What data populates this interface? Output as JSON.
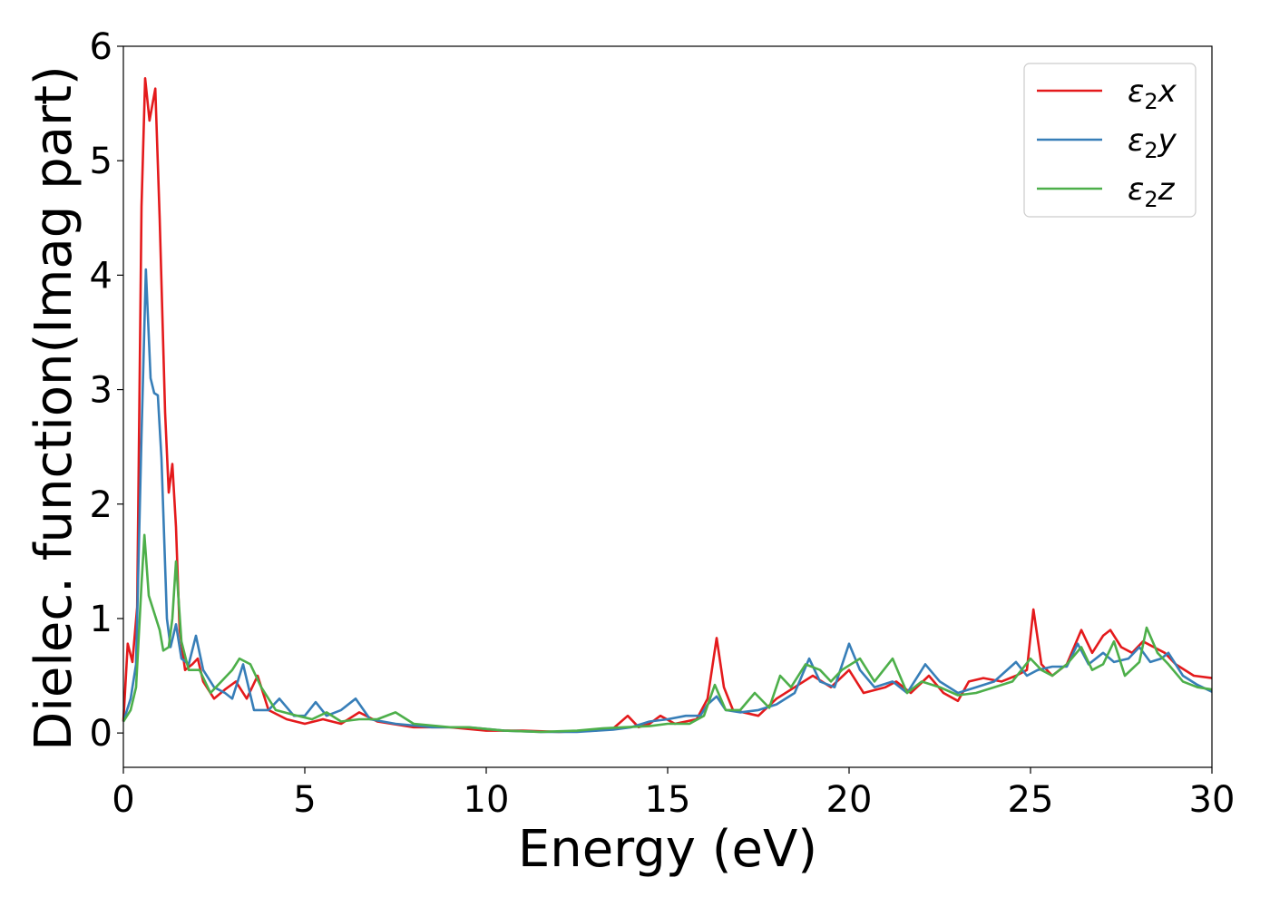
{
  "chart_data": {
    "type": "line",
    "title": "",
    "xlabel": "Energy (eV)",
    "ylabel": "Dielec. function(Imag part)",
    "xlim": [
      0,
      30
    ],
    "ylim": [
      -0.3,
      6.0
    ],
    "xticks": [
      0,
      5,
      10,
      15,
      20,
      25,
      30
    ],
    "yticks": [
      0,
      1,
      2,
      3,
      4,
      5,
      6
    ],
    "grid": false,
    "legend_position": "top-right",
    "series": [
      {
        "name": "ε₂x",
        "legend_main": "ε",
        "legend_sub": "2",
        "legend_tail": "x",
        "color": "#e41a1c",
        "points": [
          [
            0,
            0.1
          ],
          [
            0.12,
            0.78
          ],
          [
            0.25,
            0.62
          ],
          [
            0.38,
            1.1
          ],
          [
            0.5,
            4.6
          ],
          [
            0.6,
            5.72
          ],
          [
            0.72,
            5.35
          ],
          [
            0.88,
            5.63
          ],
          [
            1.0,
            4.5
          ],
          [
            1.15,
            2.8
          ],
          [
            1.25,
            2.1
          ],
          [
            1.35,
            2.35
          ],
          [
            1.45,
            1.8
          ],
          [
            1.55,
            0.9
          ],
          [
            1.7,
            0.55
          ],
          [
            1.9,
            0.6
          ],
          [
            2.05,
            0.65
          ],
          [
            2.2,
            0.45
          ],
          [
            2.5,
            0.3
          ],
          [
            2.8,
            0.38
          ],
          [
            3.1,
            0.45
          ],
          [
            3.4,
            0.3
          ],
          [
            3.7,
            0.5
          ],
          [
            4.0,
            0.2
          ],
          [
            4.5,
            0.12
          ],
          [
            5.0,
            0.08
          ],
          [
            5.5,
            0.12
          ],
          [
            6.0,
            0.08
          ],
          [
            6.5,
            0.18
          ],
          [
            7.0,
            0.1
          ],
          [
            8.0,
            0.05
          ],
          [
            9.0,
            0.05
          ],
          [
            10.0,
            0.02
          ],
          [
            11.0,
            0.02
          ],
          [
            12.0,
            0.01
          ],
          [
            13.0,
            0.02
          ],
          [
            13.5,
            0.04
          ],
          [
            13.9,
            0.15
          ],
          [
            14.2,
            0.05
          ],
          [
            14.5,
            0.08
          ],
          [
            14.8,
            0.15
          ],
          [
            15.2,
            0.08
          ],
          [
            15.8,
            0.12
          ],
          [
            16.1,
            0.3
          ],
          [
            16.35,
            0.83
          ],
          [
            16.55,
            0.4
          ],
          [
            16.8,
            0.2
          ],
          [
            17.5,
            0.15
          ],
          [
            18.0,
            0.3
          ],
          [
            18.5,
            0.4
          ],
          [
            19.0,
            0.5
          ],
          [
            19.5,
            0.4
          ],
          [
            20.0,
            0.55
          ],
          [
            20.4,
            0.35
          ],
          [
            21.0,
            0.4
          ],
          [
            21.3,
            0.45
          ],
          [
            21.7,
            0.35
          ],
          [
            22.2,
            0.5
          ],
          [
            22.6,
            0.35
          ],
          [
            23.0,
            0.28
          ],
          [
            23.3,
            0.45
          ],
          [
            23.7,
            0.48
          ],
          [
            24.2,
            0.45
          ],
          [
            24.6,
            0.5
          ],
          [
            24.9,
            0.55
          ],
          [
            25.08,
            1.08
          ],
          [
            25.3,
            0.6
          ],
          [
            25.6,
            0.5
          ],
          [
            26.0,
            0.6
          ],
          [
            26.4,
            0.9
          ],
          [
            26.7,
            0.7
          ],
          [
            27.0,
            0.85
          ],
          [
            27.2,
            0.9
          ],
          [
            27.5,
            0.75
          ],
          [
            27.8,
            0.7
          ],
          [
            28.1,
            0.8
          ],
          [
            28.4,
            0.75
          ],
          [
            28.7,
            0.7
          ],
          [
            29.0,
            0.6
          ],
          [
            29.5,
            0.5
          ],
          [
            30.0,
            0.48
          ]
        ]
      },
      {
        "name": "ε₂y",
        "legend_main": "ε",
        "legend_sub": "2",
        "legend_tail": "y",
        "color": "#377eb8",
        "points": [
          [
            0,
            0.1
          ],
          [
            0.2,
            0.3
          ],
          [
            0.35,
            0.6
          ],
          [
            0.5,
            2.6
          ],
          [
            0.62,
            4.05
          ],
          [
            0.75,
            3.1
          ],
          [
            0.85,
            2.97
          ],
          [
            0.95,
            2.95
          ],
          [
            1.05,
            2.4
          ],
          [
            1.2,
            1.0
          ],
          [
            1.3,
            0.75
          ],
          [
            1.45,
            0.95
          ],
          [
            1.6,
            0.65
          ],
          [
            1.8,
            0.6
          ],
          [
            2.0,
            0.85
          ],
          [
            2.2,
            0.55
          ],
          [
            2.5,
            0.4
          ],
          [
            2.8,
            0.35
          ],
          [
            3.0,
            0.3
          ],
          [
            3.3,
            0.6
          ],
          [
            3.6,
            0.2
          ],
          [
            4.0,
            0.2
          ],
          [
            4.3,
            0.3
          ],
          [
            4.7,
            0.15
          ],
          [
            5.0,
            0.15
          ],
          [
            5.3,
            0.27
          ],
          [
            5.6,
            0.15
          ],
          [
            6.0,
            0.2
          ],
          [
            6.4,
            0.3
          ],
          [
            6.8,
            0.12
          ],
          [
            7.5,
            0.08
          ],
          [
            8.5,
            0.05
          ],
          [
            9.5,
            0.05
          ],
          [
            10.5,
            0.02
          ],
          [
            11.5,
            0.01
          ],
          [
            12.5,
            0.01
          ],
          [
            13.5,
            0.03
          ],
          [
            14.0,
            0.05
          ],
          [
            14.5,
            0.1
          ],
          [
            15.0,
            0.12
          ],
          [
            15.5,
            0.15
          ],
          [
            15.9,
            0.15
          ],
          [
            16.1,
            0.25
          ],
          [
            16.35,
            0.32
          ],
          [
            16.6,
            0.2
          ],
          [
            17.0,
            0.18
          ],
          [
            17.5,
            0.2
          ],
          [
            18.0,
            0.25
          ],
          [
            18.5,
            0.35
          ],
          [
            18.9,
            0.65
          ],
          [
            19.2,
            0.45
          ],
          [
            19.6,
            0.4
          ],
          [
            20.0,
            0.78
          ],
          [
            20.3,
            0.55
          ],
          [
            20.7,
            0.4
          ],
          [
            21.2,
            0.45
          ],
          [
            21.6,
            0.35
          ],
          [
            22.1,
            0.6
          ],
          [
            22.5,
            0.45
          ],
          [
            23.0,
            0.35
          ],
          [
            23.5,
            0.4
          ],
          [
            24.0,
            0.45
          ],
          [
            24.6,
            0.62
          ],
          [
            24.9,
            0.5
          ],
          [
            25.2,
            0.55
          ],
          [
            25.6,
            0.58
          ],
          [
            26.0,
            0.58
          ],
          [
            26.3,
            0.78
          ],
          [
            26.6,
            0.6
          ],
          [
            27.0,
            0.7
          ],
          [
            27.3,
            0.62
          ],
          [
            27.7,
            0.65
          ],
          [
            28.0,
            0.75
          ],
          [
            28.3,
            0.62
          ],
          [
            28.6,
            0.65
          ],
          [
            28.8,
            0.7
          ],
          [
            29.2,
            0.5
          ],
          [
            29.6,
            0.42
          ],
          [
            30.0,
            0.36
          ]
        ]
      },
      {
        "name": "ε₂z",
        "legend_main": "ε",
        "legend_sub": "2",
        "legend_tail": "z",
        "color": "#4daf4a",
        "points": [
          [
            0,
            0.1
          ],
          [
            0.2,
            0.2
          ],
          [
            0.35,
            0.4
          ],
          [
            0.5,
            1.3
          ],
          [
            0.58,
            1.73
          ],
          [
            0.7,
            1.2
          ],
          [
            0.85,
            1.05
          ],
          [
            1.0,
            0.9
          ],
          [
            1.1,
            0.72
          ],
          [
            1.25,
            0.75
          ],
          [
            1.35,
            1.0
          ],
          [
            1.45,
            1.5
          ],
          [
            1.6,
            0.8
          ],
          [
            1.8,
            0.55
          ],
          [
            2.1,
            0.55
          ],
          [
            2.4,
            0.35
          ],
          [
            2.7,
            0.45
          ],
          [
            3.0,
            0.55
          ],
          [
            3.2,
            0.65
          ],
          [
            3.5,
            0.6
          ],
          [
            3.8,
            0.4
          ],
          [
            4.2,
            0.2
          ],
          [
            4.8,
            0.15
          ],
          [
            5.2,
            0.12
          ],
          [
            5.6,
            0.18
          ],
          [
            6.0,
            0.1
          ],
          [
            6.5,
            0.12
          ],
          [
            7.0,
            0.12
          ],
          [
            7.5,
            0.18
          ],
          [
            8.0,
            0.08
          ],
          [
            9.0,
            0.05
          ],
          [
            9.5,
            0.05
          ],
          [
            10.5,
            0.02
          ],
          [
            11.5,
            0.01
          ],
          [
            12.5,
            0.02
          ],
          [
            13.2,
            0.04
          ],
          [
            13.8,
            0.05
          ],
          [
            14.5,
            0.06
          ],
          [
            15.0,
            0.08
          ],
          [
            15.6,
            0.08
          ],
          [
            16.0,
            0.15
          ],
          [
            16.3,
            0.42
          ],
          [
            16.6,
            0.2
          ],
          [
            17.0,
            0.2
          ],
          [
            17.4,
            0.35
          ],
          [
            17.8,
            0.22
          ],
          [
            18.1,
            0.5
          ],
          [
            18.4,
            0.4
          ],
          [
            18.8,
            0.6
          ],
          [
            19.2,
            0.55
          ],
          [
            19.5,
            0.45
          ],
          [
            19.8,
            0.55
          ],
          [
            20.3,
            0.65
          ],
          [
            20.7,
            0.45
          ],
          [
            21.2,
            0.65
          ],
          [
            21.6,
            0.35
          ],
          [
            22.0,
            0.45
          ],
          [
            22.5,
            0.4
          ],
          [
            23.0,
            0.33
          ],
          [
            23.5,
            0.35
          ],
          [
            24.0,
            0.4
          ],
          [
            24.5,
            0.45
          ],
          [
            25.0,
            0.65
          ],
          [
            25.3,
            0.55
          ],
          [
            25.6,
            0.5
          ],
          [
            26.0,
            0.6
          ],
          [
            26.4,
            0.75
          ],
          [
            26.7,
            0.55
          ],
          [
            27.0,
            0.6
          ],
          [
            27.3,
            0.8
          ],
          [
            27.6,
            0.5
          ],
          [
            28.0,
            0.62
          ],
          [
            28.2,
            0.92
          ],
          [
            28.5,
            0.7
          ],
          [
            28.8,
            0.6
          ],
          [
            29.2,
            0.45
          ],
          [
            29.6,
            0.4
          ],
          [
            30.0,
            0.38
          ]
        ]
      }
    ]
  }
}
